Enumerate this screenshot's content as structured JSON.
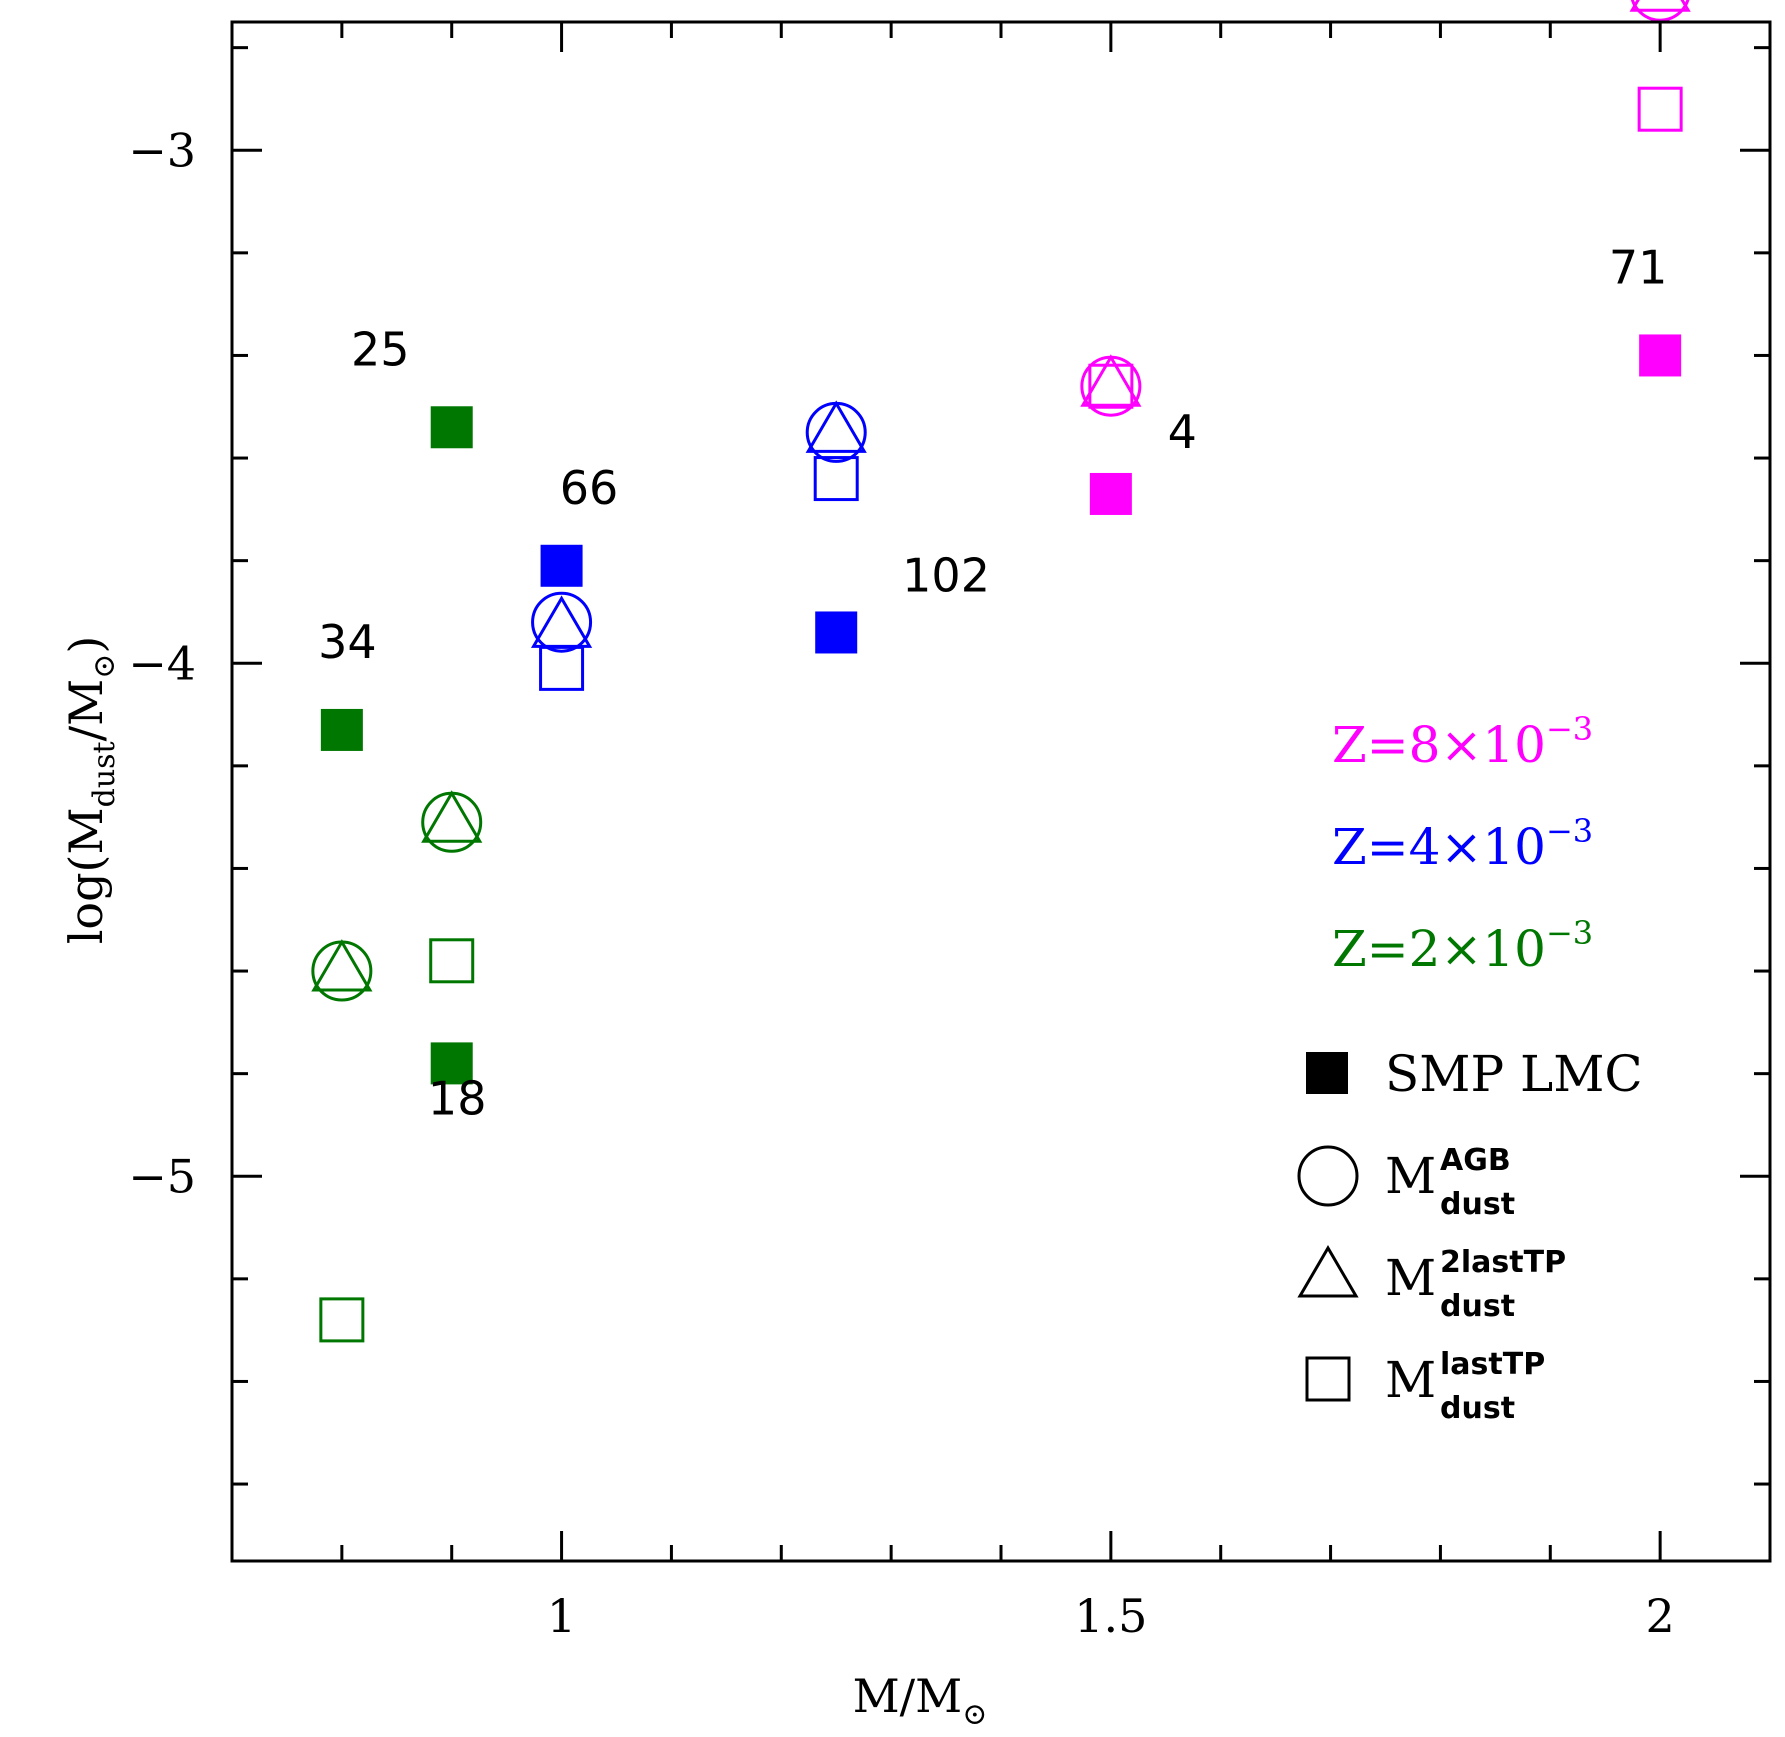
{
  "chart_data": {
    "type": "scatter",
    "xlabel_main": "M/M",
    "xlabel_sub": "⊙",
    "ylabel_main": "log(M",
    "ylabel_sub1": "dust",
    "ylabel_mid": "/M",
    "ylabel_sub2": "⊙",
    "ylabel_end": ")",
    "xlim": [
      0.7,
      2.1
    ],
    "ylim": [
      -5.75,
      -2.75
    ],
    "xticks_major": [
      1,
      1.5,
      2
    ],
    "xtick_labels": [
      "1",
      "1.5",
      "2"
    ],
    "xticks_minor_step": 0.1,
    "yticks_major": [
      -5,
      -4,
      -3
    ],
    "ytick_labels": [
      "−5",
      "−4",
      "−3"
    ],
    "yticks_minor_step": 0.2,
    "colors": {
      "z8": "#ff00ff",
      "z4": "#0000ff",
      "z2": "#007700"
    },
    "series": [
      {
        "name": "SMP LMC",
        "marker": "filled-square",
        "points": [
          {
            "x": 0.8,
            "y": -4.13,
            "color": "#007700"
          },
          {
            "x": 0.9,
            "y": -3.54,
            "color": "#007700"
          },
          {
            "x": 0.9,
            "y": -4.78,
            "color": "#007700"
          },
          {
            "x": 1.0,
            "y": -3.81,
            "color": "#0000ff"
          },
          {
            "x": 1.25,
            "y": -3.94,
            "color": "#0000ff"
          },
          {
            "x": 1.5,
            "y": -3.67,
            "color": "#ff00ff"
          },
          {
            "x": 2.0,
            "y": -3.4,
            "color": "#ff00ff"
          }
        ]
      },
      {
        "name": "M dust AGB",
        "marker": "open-circle",
        "points": [
          {
            "x": 0.8,
            "y": -4.6,
            "color": "#007700"
          },
          {
            "x": 0.9,
            "y": -4.31,
            "color": "#007700"
          },
          {
            "x": 1.0,
            "y": -3.92,
            "color": "#0000ff"
          },
          {
            "x": 1.25,
            "y": -3.55,
            "color": "#0000ff"
          },
          {
            "x": 1.5,
            "y": -3.46,
            "color": "#ff00ff"
          },
          {
            "x": 2.0,
            "y": -2.69,
            "color": "#ff00ff"
          }
        ]
      },
      {
        "name": "M dust 2lastTP",
        "marker": "open-triangle",
        "points": [
          {
            "x": 0.8,
            "y": -4.6,
            "color": "#007700"
          },
          {
            "x": 0.9,
            "y": -4.31,
            "color": "#007700"
          },
          {
            "x": 1.0,
            "y": -3.93,
            "color": "#0000ff"
          },
          {
            "x": 1.25,
            "y": -3.55,
            "color": "#0000ff"
          },
          {
            "x": 1.5,
            "y": -3.46,
            "color": "#ff00ff"
          },
          {
            "x": 2.0,
            "y": -2.69,
            "color": "#ff00ff"
          }
        ]
      },
      {
        "name": "M dust lastTP",
        "marker": "open-square",
        "points": [
          {
            "x": 0.8,
            "y": -5.28,
            "color": "#007700"
          },
          {
            "x": 0.9,
            "y": -4.58,
            "color": "#007700"
          },
          {
            "x": 1.0,
            "y": -4.01,
            "color": "#0000ff"
          },
          {
            "x": 1.25,
            "y": -3.64,
            "color": "#0000ff"
          },
          {
            "x": 1.5,
            "y": -3.46,
            "color": "#ff00ff"
          },
          {
            "x": 2.0,
            "y": -2.92,
            "color": "#ff00ff"
          }
        ]
      }
    ],
    "annotations": [
      {
        "text": "25",
        "x": 0.835,
        "y": -3.42
      },
      {
        "text": "66",
        "x": 1.025,
        "y": -3.69
      },
      {
        "text": "34",
        "x": 0.805,
        "y": -3.99
      },
      {
        "text": "102",
        "x": 1.35,
        "y": -3.86
      },
      {
        "text": "4",
        "x": 1.565,
        "y": -3.58
      },
      {
        "text": "71",
        "x": 1.98,
        "y": -3.26
      },
      {
        "text": "18",
        "x": 0.905,
        "y": -4.88
      }
    ],
    "legend": {
      "z_entries": [
        {
          "label": "Z=8×10",
          "exp": "−3",
          "color": "#ff00ff"
        },
        {
          "label": "Z=4×10",
          "exp": "−3",
          "color": "#0000ff"
        },
        {
          "label": "Z=2×10",
          "exp": "−3",
          "color": "#007700"
        }
      ],
      "marker_entries": [
        {
          "marker": "filled-square",
          "label": "SMP LMC",
          "sup": "",
          "sub": ""
        },
        {
          "marker": "open-circle",
          "label": "M",
          "sup": "AGB",
          "sub": "dust"
        },
        {
          "marker": "open-triangle",
          "label": "M",
          "sup": "2lastTP",
          "sub": "dust"
        },
        {
          "marker": "open-square",
          "label": "M",
          "sup": "lastTP",
          "sub": "dust"
        }
      ],
      "placement": "right"
    }
  }
}
